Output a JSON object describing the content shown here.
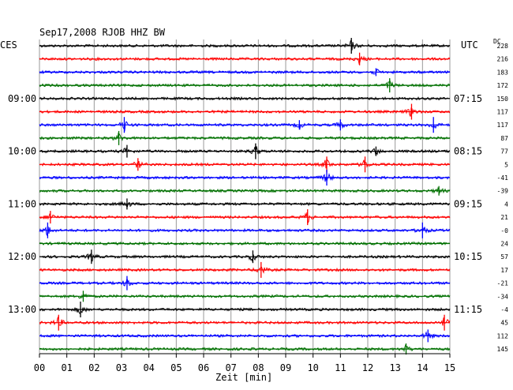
{
  "chart_data": {
    "type": "line",
    "title": "Sep17,2008   RJOB HHZ BW",
    "left_zone": "CES",
    "right_zone": "UTC",
    "dc_label": "DC",
    "xlabel": "Zeit [min]",
    "x_ticks": [
      "00",
      "01",
      "02",
      "03",
      "04",
      "05",
      "06",
      "07",
      "08",
      "09",
      "10",
      "11",
      "12",
      "13",
      "14",
      "15"
    ],
    "xlim": [
      0,
      15
    ],
    "colors": [
      "#000000",
      "#ff0000",
      "#0000ff",
      "#007000"
    ],
    "left_time_labels": [
      {
        "trace": 4,
        "label": "09:00"
      },
      {
        "trace": 8,
        "label": "10:00"
      },
      {
        "trace": 12,
        "label": "11:00"
      },
      {
        "trace": 16,
        "label": "12:00"
      },
      {
        "trace": 20,
        "label": "13:00"
      }
    ],
    "right_time_labels": [
      {
        "trace": 4,
        "label": "07:15"
      },
      {
        "trace": 8,
        "label": "08:15"
      },
      {
        "trace": 12,
        "label": "09:15"
      },
      {
        "trace": 16,
        "label": "10:15"
      },
      {
        "trace": 20,
        "label": "11:15"
      }
    ],
    "dc_offsets": [
      "228",
      "216",
      "183",
      "172",
      "150",
      "117",
      "117",
      "87",
      "77",
      "5",
      "-41",
      "-39",
      "4",
      "21",
      "-0",
      "24",
      "57",
      "17",
      "-21",
      "-34",
      "-4",
      "45",
      "112",
      "145"
    ],
    "trace_count": 24,
    "events": [
      {
        "trace": 0,
        "min": 11.4,
        "amp": 1.0
      },
      {
        "trace": 1,
        "min": 11.7,
        "amp": 0.8
      },
      {
        "trace": 2,
        "min": 12.3,
        "amp": 0.5
      },
      {
        "trace": 3,
        "min": 12.8,
        "amp": 0.9
      },
      {
        "trace": 5,
        "min": 13.6,
        "amp": 1.0
      },
      {
        "trace": 6,
        "min": 3.1,
        "amp": 1.0
      },
      {
        "trace": 6,
        "min": 9.5,
        "amp": 0.6
      },
      {
        "trace": 6,
        "min": 11.0,
        "amp": 0.7
      },
      {
        "trace": 6,
        "min": 14.4,
        "amp": 1.0
      },
      {
        "trace": 7,
        "min": 2.9,
        "amp": 0.9
      },
      {
        "trace": 8,
        "min": 3.2,
        "amp": 0.8
      },
      {
        "trace": 8,
        "min": 7.9,
        "amp": 1.0
      },
      {
        "trace": 8,
        "min": 12.3,
        "amp": 0.6
      },
      {
        "trace": 9,
        "min": 3.6,
        "amp": 0.8
      },
      {
        "trace": 9,
        "min": 10.5,
        "amp": 1.0
      },
      {
        "trace": 9,
        "min": 11.9,
        "amp": 1.0
      },
      {
        "trace": 10,
        "min": 10.5,
        "amp": 1.0
      },
      {
        "trace": 11,
        "min": 14.6,
        "amp": 0.6
      },
      {
        "trace": 12,
        "min": 3.2,
        "amp": 0.7
      },
      {
        "trace": 13,
        "min": 0.4,
        "amp": 0.8
      },
      {
        "trace": 13,
        "min": 9.8,
        "amp": 1.0
      },
      {
        "trace": 14,
        "min": 0.3,
        "amp": 1.0
      },
      {
        "trace": 14,
        "min": 14.0,
        "amp": 1.0
      },
      {
        "trace": 16,
        "min": 1.9,
        "amp": 0.9
      },
      {
        "trace": 16,
        "min": 7.8,
        "amp": 0.8
      },
      {
        "trace": 17,
        "min": 8.1,
        "amp": 1.0
      },
      {
        "trace": 18,
        "min": 3.2,
        "amp": 0.9
      },
      {
        "trace": 19,
        "min": 1.6,
        "amp": 0.7
      },
      {
        "trace": 20,
        "min": 1.5,
        "amp": 1.0
      },
      {
        "trace": 21,
        "min": 0.7,
        "amp": 1.0
      },
      {
        "trace": 21,
        "min": 14.8,
        "amp": 1.0
      },
      {
        "trace": 22,
        "min": 14.2,
        "amp": 0.8
      },
      {
        "trace": 23,
        "min": 13.4,
        "amp": 0.7
      }
    ]
  }
}
